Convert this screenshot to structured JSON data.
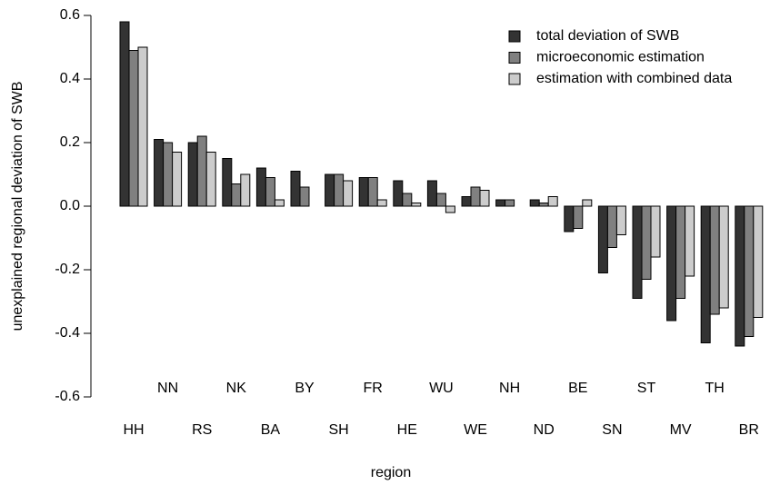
{
  "chart_data": {
    "type": "bar",
    "y_label": "unexplained regional deviation of SWB",
    "x_label": "region",
    "categories": [
      "HH",
      "NN",
      "RS",
      "NK",
      "BA",
      "BY",
      "SH",
      "FR",
      "HE",
      "WU",
      "WE",
      "NH",
      "ND",
      "BE",
      "SN",
      "ST",
      "MV",
      "TH",
      "BR"
    ],
    "series": [
      {
        "name": "total deviation of SWB",
        "color": "#333333",
        "values": [
          0.58,
          0.21,
          0.2,
          0.15,
          0.12,
          0.11,
          0.1,
          0.09,
          0.08,
          0.08,
          0.03,
          0.02,
          0.02,
          -0.08,
          -0.21,
          -0.29,
          -0.36,
          -0.43,
          -0.44
        ]
      },
      {
        "name": "microeconomic estimation",
        "color": "#808080",
        "values": [
          0.49,
          0.2,
          0.22,
          0.07,
          0.09,
          0.06,
          0.1,
          0.09,
          0.04,
          0.04,
          0.06,
          0.02,
          0.01,
          -0.07,
          -0.13,
          -0.23,
          -0.29,
          -0.34,
          -0.41
        ]
      },
      {
        "name": "estimation with combined data",
        "color": "#cccccc",
        "values": [
          0.5,
          0.17,
          0.17,
          0.1,
          0.02,
          0.0,
          0.08,
          0.02,
          0.01,
          -0.02,
          0.05,
          0.0,
          0.03,
          0.02,
          -0.09,
          -0.16,
          -0.22,
          -0.32,
          -0.35
        ]
      }
    ],
    "ylim": [
      -0.6,
      0.6
    ],
    "yticks": [
      0.6,
      0.4,
      0.2,
      {
        "value": 0,
        "label": "0.0"
      },
      -0.2,
      -0.4,
      -0.6
    ],
    "legend": "top-right"
  }
}
